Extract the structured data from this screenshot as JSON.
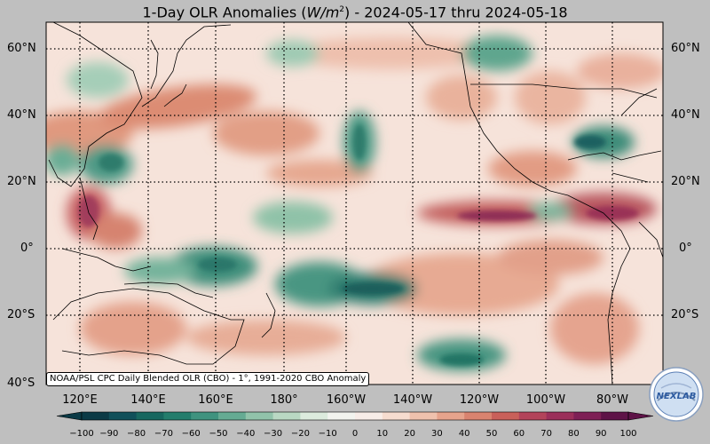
{
  "title": {
    "prefix": "1-Day OLR Anomalies (",
    "unit_main": "W/m",
    "unit_sup": "2",
    "suffix": ") - 2024-05-17 thru 2024-05-18"
  },
  "map": {
    "lat_labels": [
      "60°N",
      "40°N",
      "20°N",
      "0°",
      "20°S",
      "40°S"
    ],
    "lon_labels": [
      "120°E",
      "140°E",
      "160°E",
      "180°",
      "160°W",
      "140°W",
      "120°W",
      "100°W",
      "80°W"
    ],
    "caption": "NOAA/PSL CPC Daily Blended OLR (CBO) - 1°, 1991-2020 CBO Anomaly",
    "extent": {
      "lon_min": 110,
      "lon_max": 290,
      "lat_min": -40,
      "lat_max": 68
    }
  },
  "colorbar": {
    "ticks": [
      "−100",
      "−90",
      "−80",
      "−70",
      "−60",
      "−50",
      "−40",
      "−30",
      "−20",
      "−10",
      "0",
      "10",
      "20",
      "30",
      "40",
      "50",
      "60",
      "70",
      "80",
      "90",
      "100"
    ],
    "colors": [
      "#0b3a46",
      "#10505a",
      "#17675f",
      "#237d6c",
      "#3f937f",
      "#65ab93",
      "#91c3aa",
      "#b9d8c3",
      "#dcebdd",
      "#f3f4ef",
      "#f8ede8",
      "#f6dccf",
      "#efc1ad",
      "#e6a38c",
      "#d9836f",
      "#c9605a",
      "#b3435a",
      "#9b2f5a",
      "#7e1f55",
      "#5e1347"
    ]
  },
  "logo": {
    "text": "NEXLAB"
  }
}
